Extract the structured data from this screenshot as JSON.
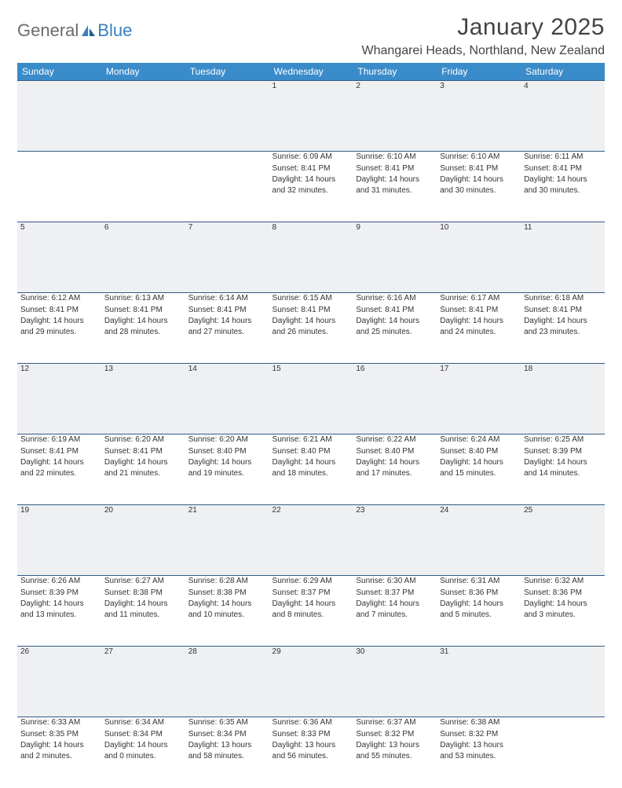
{
  "brand": {
    "part1": "General",
    "part2": "Blue"
  },
  "title": "January 2025",
  "location": "Whangarei Heads, Northland, New Zealand",
  "colors": {
    "header_bg": "#3a8bc9",
    "header_text": "#ffffff",
    "daynum_bg": "#eef0f2",
    "border": "#2f5b86",
    "text": "#333333",
    "brand_gray": "#6b6b6b",
    "brand_blue": "#3a7fbf"
  },
  "typography": {
    "title_fontsize": 30,
    "location_fontsize": 16,
    "header_fontsize": 12,
    "daynum_fontsize": 12,
    "cell_fontsize": 10
  },
  "columns": [
    "Sunday",
    "Monday",
    "Tuesday",
    "Wednesday",
    "Thursday",
    "Friday",
    "Saturday"
  ],
  "weeks": [
    [
      {
        "day": "",
        "sunrise": "",
        "sunset": "",
        "daylight": ""
      },
      {
        "day": "",
        "sunrise": "",
        "sunset": "",
        "daylight": ""
      },
      {
        "day": "",
        "sunrise": "",
        "sunset": "",
        "daylight": ""
      },
      {
        "day": "1",
        "sunrise": "Sunrise: 6:09 AM",
        "sunset": "Sunset: 8:41 PM",
        "daylight": "Daylight: 14 hours and 32 minutes."
      },
      {
        "day": "2",
        "sunrise": "Sunrise: 6:10 AM",
        "sunset": "Sunset: 8:41 PM",
        "daylight": "Daylight: 14 hours and 31 minutes."
      },
      {
        "day": "3",
        "sunrise": "Sunrise: 6:10 AM",
        "sunset": "Sunset: 8:41 PM",
        "daylight": "Daylight: 14 hours and 30 minutes."
      },
      {
        "day": "4",
        "sunrise": "Sunrise: 6:11 AM",
        "sunset": "Sunset: 8:41 PM",
        "daylight": "Daylight: 14 hours and 30 minutes."
      }
    ],
    [
      {
        "day": "5",
        "sunrise": "Sunrise: 6:12 AM",
        "sunset": "Sunset: 8:41 PM",
        "daylight": "Daylight: 14 hours and 29 minutes."
      },
      {
        "day": "6",
        "sunrise": "Sunrise: 6:13 AM",
        "sunset": "Sunset: 8:41 PM",
        "daylight": "Daylight: 14 hours and 28 minutes."
      },
      {
        "day": "7",
        "sunrise": "Sunrise: 6:14 AM",
        "sunset": "Sunset: 8:41 PM",
        "daylight": "Daylight: 14 hours and 27 minutes."
      },
      {
        "day": "8",
        "sunrise": "Sunrise: 6:15 AM",
        "sunset": "Sunset: 8:41 PM",
        "daylight": "Daylight: 14 hours and 26 minutes."
      },
      {
        "day": "9",
        "sunrise": "Sunrise: 6:16 AM",
        "sunset": "Sunset: 8:41 PM",
        "daylight": "Daylight: 14 hours and 25 minutes."
      },
      {
        "day": "10",
        "sunrise": "Sunrise: 6:17 AM",
        "sunset": "Sunset: 8:41 PM",
        "daylight": "Daylight: 14 hours and 24 minutes."
      },
      {
        "day": "11",
        "sunrise": "Sunrise: 6:18 AM",
        "sunset": "Sunset: 8:41 PM",
        "daylight": "Daylight: 14 hours and 23 minutes."
      }
    ],
    [
      {
        "day": "12",
        "sunrise": "Sunrise: 6:19 AM",
        "sunset": "Sunset: 8:41 PM",
        "daylight": "Daylight: 14 hours and 22 minutes."
      },
      {
        "day": "13",
        "sunrise": "Sunrise: 6:20 AM",
        "sunset": "Sunset: 8:41 PM",
        "daylight": "Daylight: 14 hours and 21 minutes."
      },
      {
        "day": "14",
        "sunrise": "Sunrise: 6:20 AM",
        "sunset": "Sunset: 8:40 PM",
        "daylight": "Daylight: 14 hours and 19 minutes."
      },
      {
        "day": "15",
        "sunrise": "Sunrise: 6:21 AM",
        "sunset": "Sunset: 8:40 PM",
        "daylight": "Daylight: 14 hours and 18 minutes."
      },
      {
        "day": "16",
        "sunrise": "Sunrise: 6:22 AM",
        "sunset": "Sunset: 8:40 PM",
        "daylight": "Daylight: 14 hours and 17 minutes."
      },
      {
        "day": "17",
        "sunrise": "Sunrise: 6:24 AM",
        "sunset": "Sunset: 8:40 PM",
        "daylight": "Daylight: 14 hours and 15 minutes."
      },
      {
        "day": "18",
        "sunrise": "Sunrise: 6:25 AM",
        "sunset": "Sunset: 8:39 PM",
        "daylight": "Daylight: 14 hours and 14 minutes."
      }
    ],
    [
      {
        "day": "19",
        "sunrise": "Sunrise: 6:26 AM",
        "sunset": "Sunset: 8:39 PM",
        "daylight": "Daylight: 14 hours and 13 minutes."
      },
      {
        "day": "20",
        "sunrise": "Sunrise: 6:27 AM",
        "sunset": "Sunset: 8:38 PM",
        "daylight": "Daylight: 14 hours and 11 minutes."
      },
      {
        "day": "21",
        "sunrise": "Sunrise: 6:28 AM",
        "sunset": "Sunset: 8:38 PM",
        "daylight": "Daylight: 14 hours and 10 minutes."
      },
      {
        "day": "22",
        "sunrise": "Sunrise: 6:29 AM",
        "sunset": "Sunset: 8:37 PM",
        "daylight": "Daylight: 14 hours and 8 minutes."
      },
      {
        "day": "23",
        "sunrise": "Sunrise: 6:30 AM",
        "sunset": "Sunset: 8:37 PM",
        "daylight": "Daylight: 14 hours and 7 minutes."
      },
      {
        "day": "24",
        "sunrise": "Sunrise: 6:31 AM",
        "sunset": "Sunset: 8:36 PM",
        "daylight": "Daylight: 14 hours and 5 minutes."
      },
      {
        "day": "25",
        "sunrise": "Sunrise: 6:32 AM",
        "sunset": "Sunset: 8:36 PM",
        "daylight": "Daylight: 14 hours and 3 minutes."
      }
    ],
    [
      {
        "day": "26",
        "sunrise": "Sunrise: 6:33 AM",
        "sunset": "Sunset: 8:35 PM",
        "daylight": "Daylight: 14 hours and 2 minutes."
      },
      {
        "day": "27",
        "sunrise": "Sunrise: 6:34 AM",
        "sunset": "Sunset: 8:34 PM",
        "daylight": "Daylight: 14 hours and 0 minutes."
      },
      {
        "day": "28",
        "sunrise": "Sunrise: 6:35 AM",
        "sunset": "Sunset: 8:34 PM",
        "daylight": "Daylight: 13 hours and 58 minutes."
      },
      {
        "day": "29",
        "sunrise": "Sunrise: 6:36 AM",
        "sunset": "Sunset: 8:33 PM",
        "daylight": "Daylight: 13 hours and 56 minutes."
      },
      {
        "day": "30",
        "sunrise": "Sunrise: 6:37 AM",
        "sunset": "Sunset: 8:32 PM",
        "daylight": "Daylight: 13 hours and 55 minutes."
      },
      {
        "day": "31",
        "sunrise": "Sunrise: 6:38 AM",
        "sunset": "Sunset: 8:32 PM",
        "daylight": "Daylight: 13 hours and 53 minutes."
      },
      {
        "day": "",
        "sunrise": "",
        "sunset": "",
        "daylight": ""
      }
    ]
  ]
}
